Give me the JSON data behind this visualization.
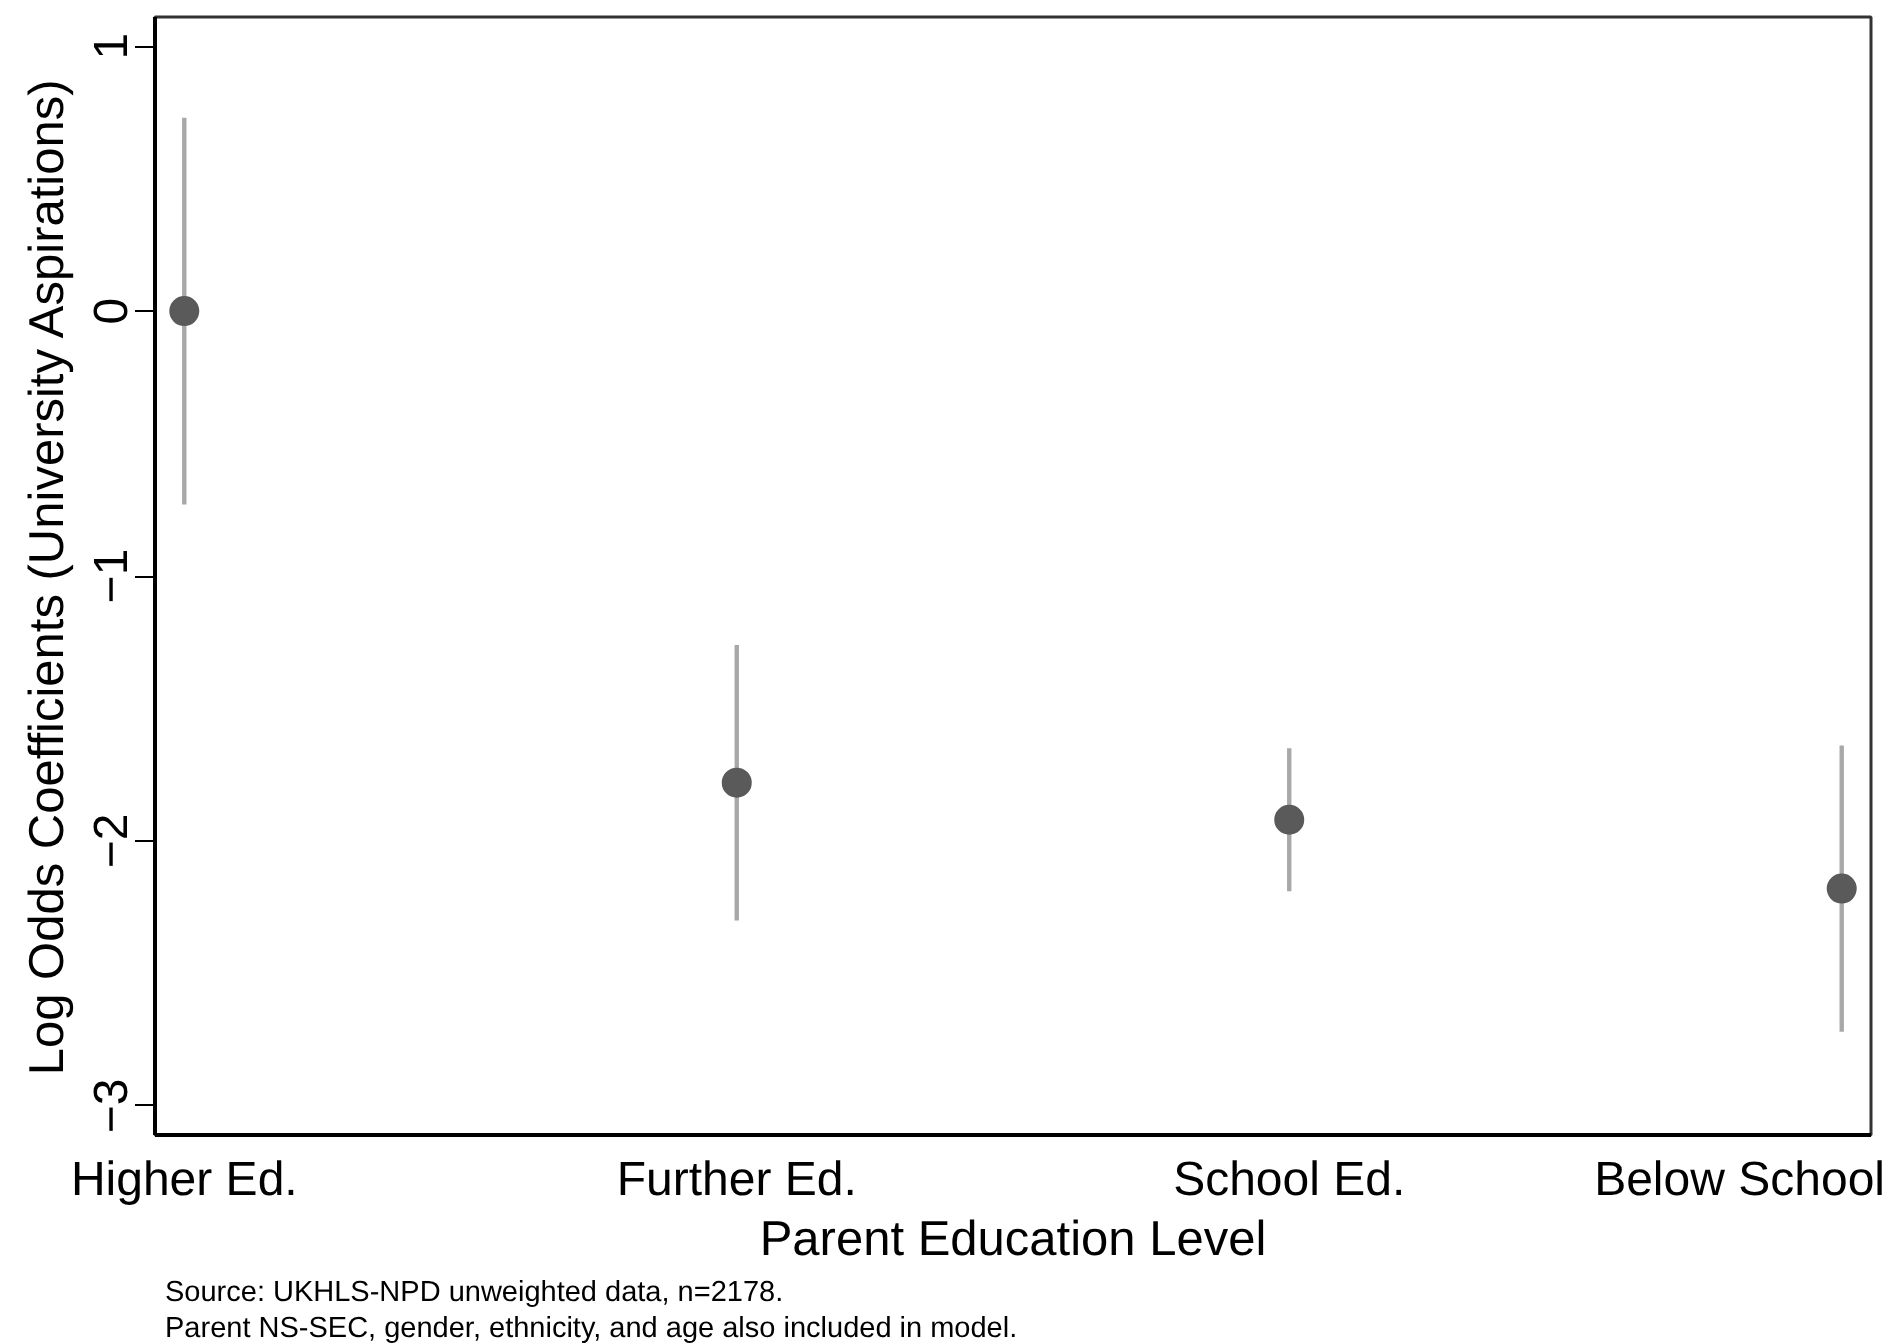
{
  "chart_data": {
    "type": "scatter",
    "xlabel": "Parent Education Level",
    "ylabel": "Log Odds Coefficients (University Aspirations)",
    "categories": [
      "Higher Ed.",
      "Further Ed.",
      "School Ed.",
      "Below School"
    ],
    "values": [
      0,
      -1.78,
      -1.92,
      -2.18
    ],
    "errors": [
      0.73,
      0.52,
      0.27,
      0.54
    ],
    "color": "#5a5a5a",
    "marker": "circle",
    "ylim": [
      -3.11,
      1.11
    ],
    "yticks": [
      1,
      0,
      -1,
      -2,
      -3
    ],
    "grid": false,
    "annotations": [
      "Source: UKHLS-NPD unweighted data, n=2178.",
      "Parent NS-SEC, gender, ethnicity, and age also included in model."
    ]
  }
}
